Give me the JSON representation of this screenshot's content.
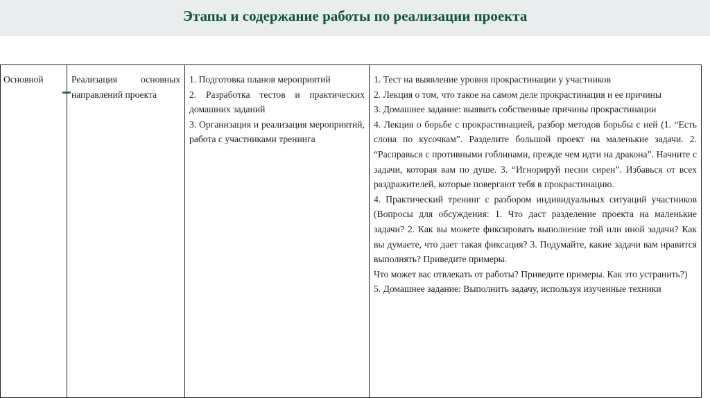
{
  "header": {
    "title": "Этапы и содержание работы по реализации проекта"
  },
  "table": {
    "row": {
      "stage": "Основной",
      "goal": "Реализация основных направлений проекта",
      "tasks": [
        "1. Подготовка планов мероприятий",
        "2. Разработка тестов и практических домашних заданий",
        "3. Организация и реализация мероприятий, работа с участниками тренинга"
      ],
      "content": [
        "1. Тест на выявление уровня прокрастинации у участников",
        "2. Лекция о том, что такое на самом деле прокрастинация и ее причины",
        "3. Домашнее задание: выявить собственные причины прокрастинации",
        "4. Лекция о борьбе с прокрастинацией, разбор методов борьбы с ней (1. “Есть слона по кусочкам”. Разделите большой проект на маленькие задачи. 2. “Расправься с противными гоблинами, прежде чем идти на дракона”. Начните с задачи, которая вам по душе. 3. “Игнорируй песни сирен”. Избавься от всех раздражителей, которые повергают тебя в прокрастинацию.",
        "4. Практический тренинг с разбором индивидуальных ситуаций участников (Вопросы для обсуждения: 1. Что даст разделение проекта на маленькие задачи? 2. Как вы можете фиксировать выполнение той или иной задачи? Как вы думаете, что дает такая фиксация? 3. Подумайте, какие задачи вам нравится выполнять? Приведите примеры.",
        "Что может вас отвлекать от работы? Приведите примеры. Как это устранить?)",
        "5. Домашнее задание: Выполнить задачу, используя изученные техники"
      ]
    }
  },
  "colors": {
    "title": "#17503c",
    "header_bg": "#e9eded"
  }
}
